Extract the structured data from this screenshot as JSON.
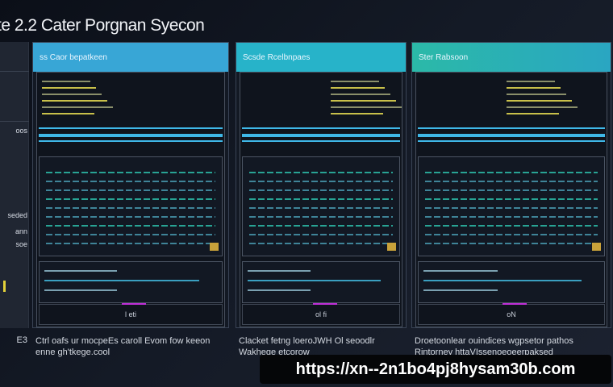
{
  "title": "te 2.2 Cater Porgnan Syecon",
  "sidebar": {
    "items": [
      {
        "label": ""
      },
      {
        "label": "oos"
      },
      {
        "label": "seded"
      },
      {
        "label": "ann"
      },
      {
        "label": "soe"
      },
      {
        "label": "E3"
      }
    ]
  },
  "panels": [
    {
      "title": "ss Caor bepatkeen",
      "footer": "l eti",
      "description": "Ctrl oafs ur mocpeEs caroll Evom fow keeon enne gh'tkege.cool",
      "header_color": "#38a6d6"
    },
    {
      "title": "Scsde Rcelbnpaes",
      "footer": "ol fi",
      "description": "Clacket fetng loeroJWH Ol seoodlr Wakhege etcorow",
      "header_color": "#27b3c9"
    },
    {
      "title": "Ster Rabsoon",
      "footer": "oN",
      "description": "Droetoonlear ouindices wgpsetor pathos Rintorney httaVIssenoeoeerpaksed",
      "header_color": "#2bb9a8"
    }
  ],
  "watermark": "https://xn--2n1bo4pj8hysam30b.com",
  "colors": {
    "cyan": "#3fb8e8",
    "teal": "#2ec6b0",
    "yellow": "#c8c04a",
    "magenta": "#c02fd8"
  }
}
